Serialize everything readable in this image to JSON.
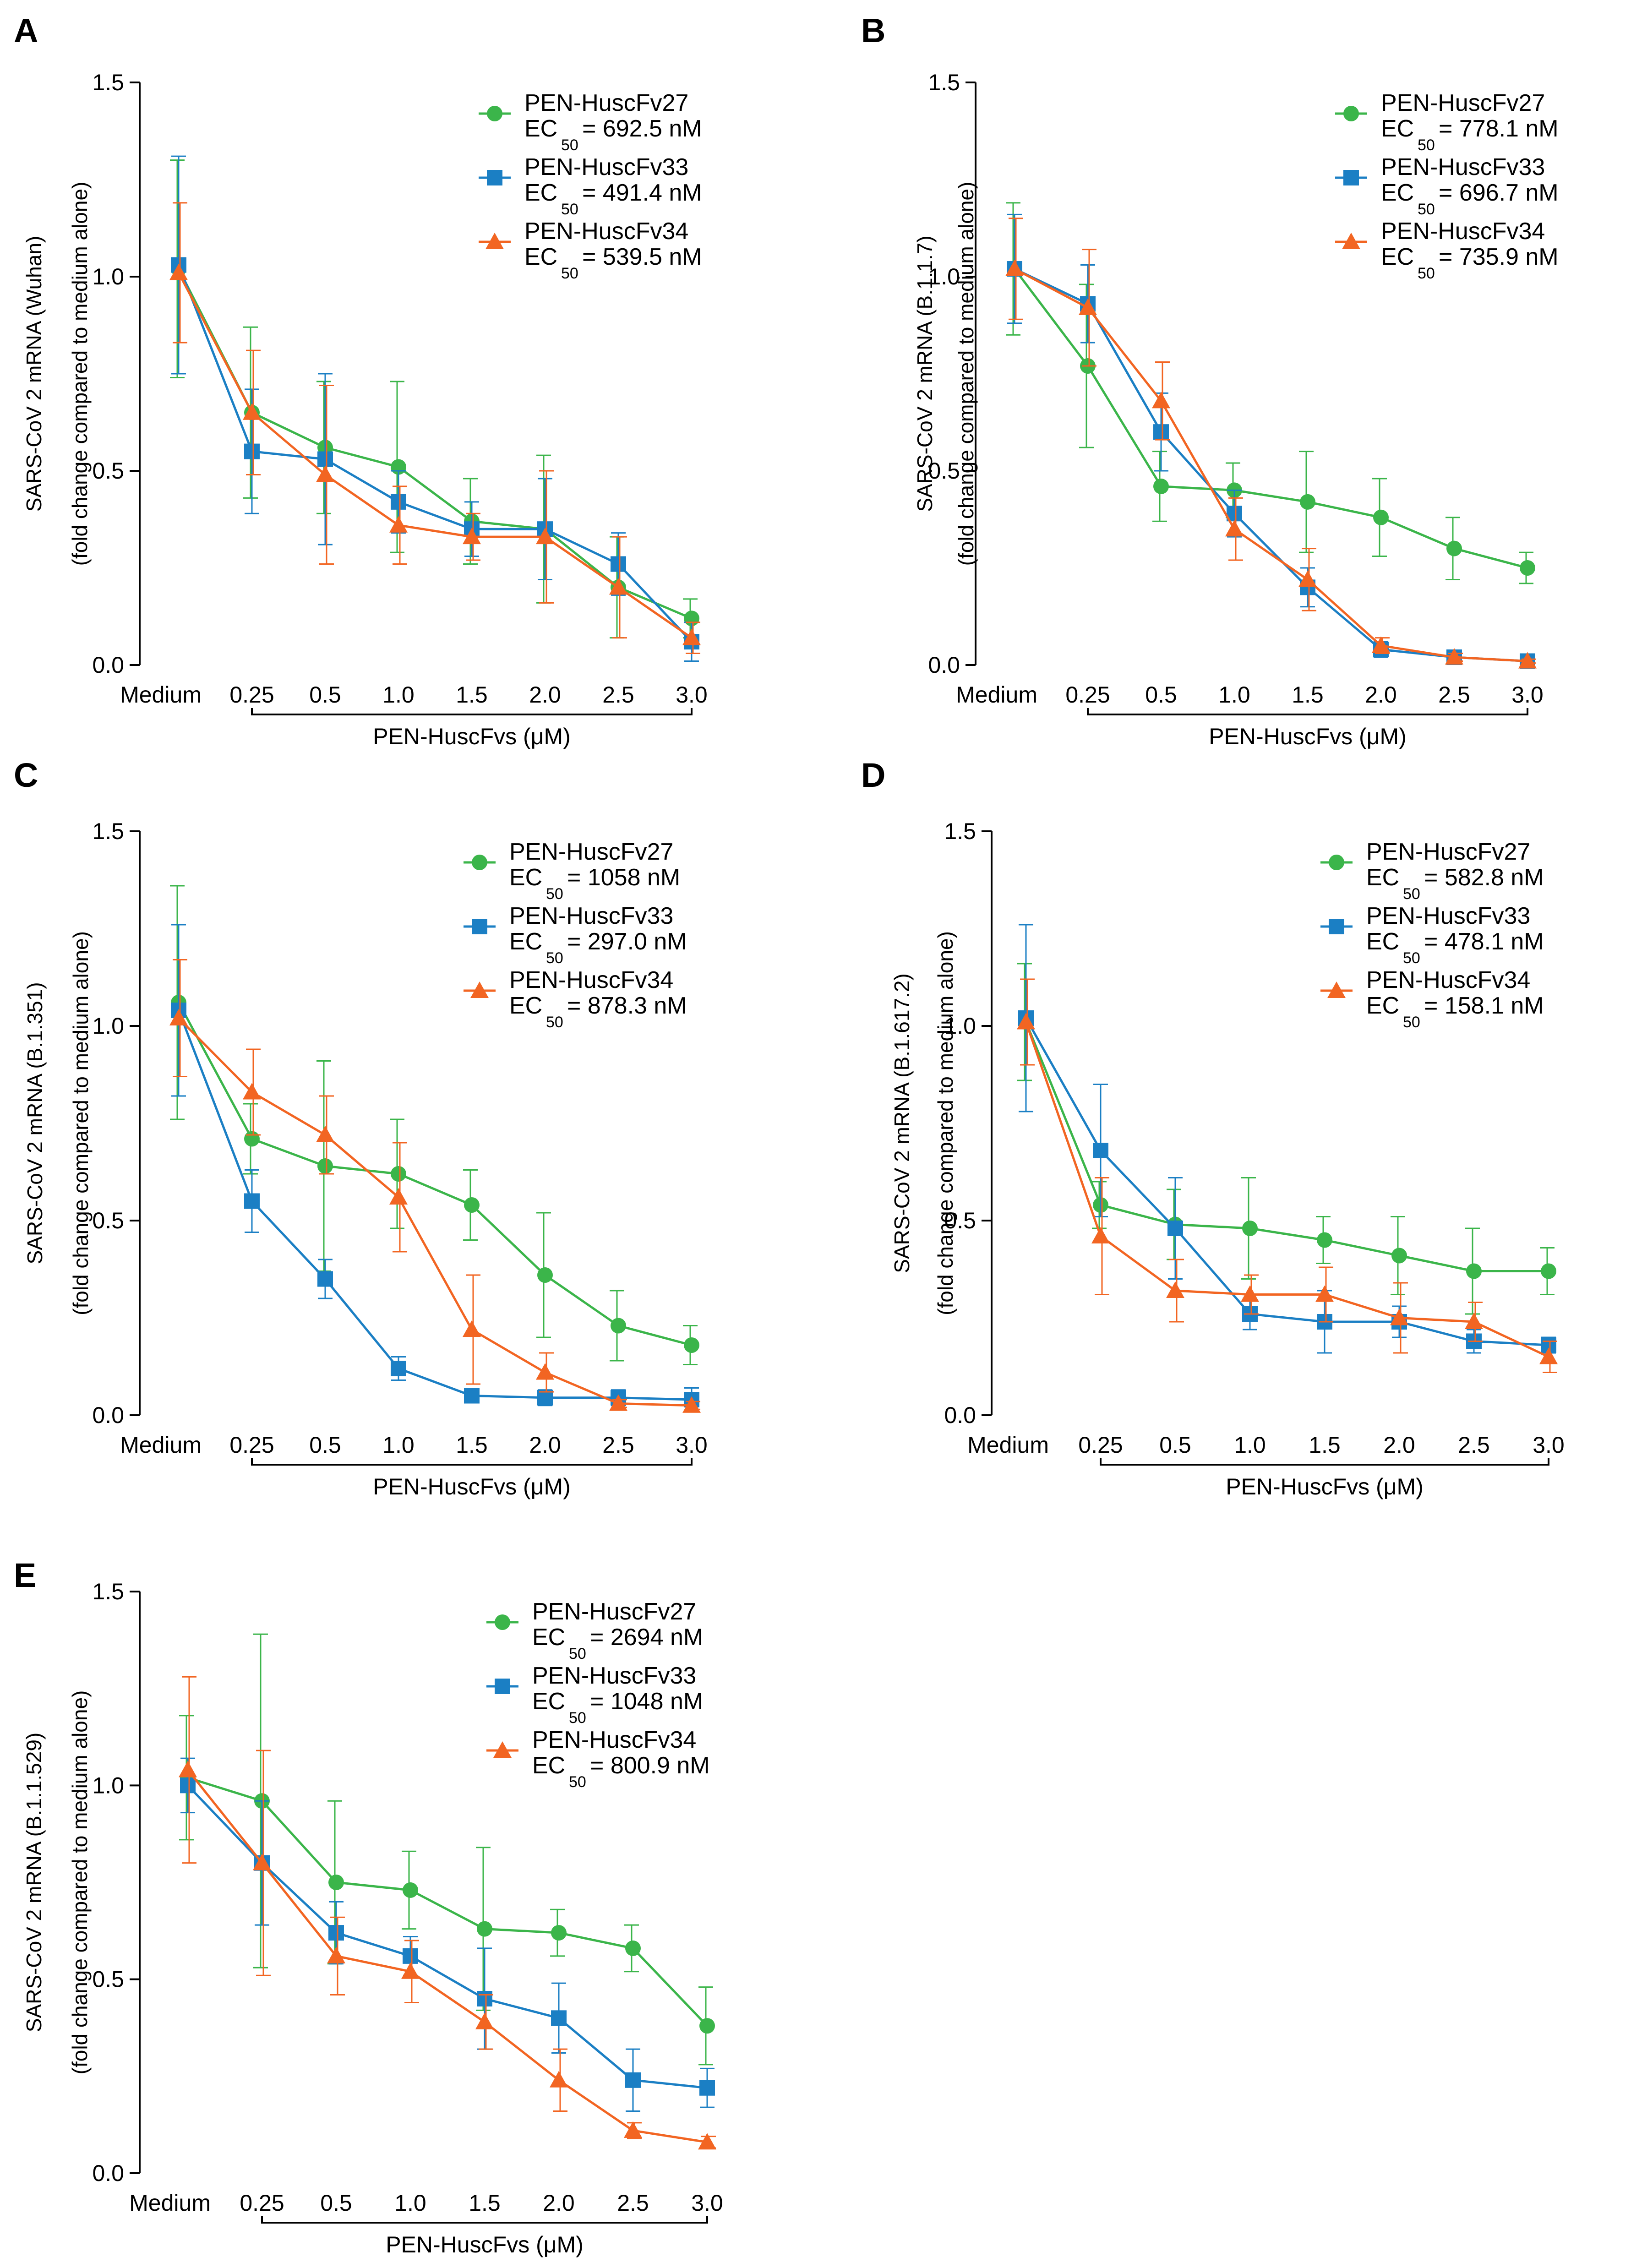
{
  "figure": {
    "x_axis_label": "PEN-HuscFvs (μM)",
    "categories": [
      "Medium",
      "0.25",
      "0.5",
      "1.0",
      "1.5",
      "2.0",
      "2.5",
      "3.0"
    ],
    "y_ticks": [
      "0.0",
      "0.5",
      "1.0",
      "1.5"
    ],
    "series_colors": {
      "PEN-HuscFv27": "#3bb54a",
      "PEN-HuscFv33": "#1b7fc4",
      "PEN-HuscFv34": "#f26522"
    },
    "ec_label": "EC",
    "ec_subscript": "50"
  },
  "chart_data": [
    {
      "panel": "A",
      "type": "line",
      "ylabel": "SARS-CoV 2 mRNA (Wuhan)",
      "ylabel2": "(fold change compared to medium alone)",
      "xlabel": "PEN-HuscFvs (μM)",
      "ylim": [
        0,
        1.5
      ],
      "categories": [
        "Medium",
        "0.25",
        "0.5",
        "1.0",
        "1.5",
        "2.0",
        "2.5",
        "3.0"
      ],
      "series": [
        {
          "name": "PEN-HuscFv27",
          "ec50": "= 692.5 nM",
          "marker": "circle",
          "color": "#3bb54a",
          "values": [
            1.02,
            0.65,
            0.56,
            0.51,
            0.37,
            0.35,
            0.2,
            0.12
          ],
          "errors": [
            0.28,
            0.22,
            0.17,
            0.22,
            0.11,
            0.19,
            0.13,
            0.05
          ]
        },
        {
          "name": "PEN-HuscFv33",
          "ec50": "= 491.4 nM",
          "marker": "square",
          "color": "#1b7fc4",
          "values": [
            1.03,
            0.55,
            0.53,
            0.42,
            0.35,
            0.35,
            0.26,
            0.06
          ],
          "errors": [
            0.28,
            0.16,
            0.22,
            0.08,
            0.07,
            0.13,
            0.08,
            0.05
          ]
        },
        {
          "name": "PEN-HuscFv34",
          "ec50": "= 539.5 nM",
          "marker": "triangle",
          "color": "#f26522",
          "values": [
            1.01,
            0.65,
            0.49,
            0.36,
            0.33,
            0.33,
            0.2,
            0.07
          ],
          "errors": [
            0.18,
            0.16,
            0.23,
            0.1,
            0.06,
            0.17,
            0.13,
            0.04
          ]
        }
      ]
    },
    {
      "panel": "B",
      "type": "line",
      "ylabel": "SARS-CoV 2 mRNA (B.1.1.7)",
      "ylabel2": "(fold change compared to medium alone)",
      "xlabel": "PEN-HuscFvs (μM)",
      "ylim": [
        0,
        1.5
      ],
      "categories": [
        "Medium",
        "0.25",
        "0.5",
        "1.0",
        "1.5",
        "2.0",
        "2.5",
        "3.0"
      ],
      "series": [
        {
          "name": "PEN-HuscFv27",
          "ec50": "= 778.1 nM",
          "marker": "circle",
          "color": "#3bb54a",
          "values": [
            1.02,
            0.77,
            0.46,
            0.45,
            0.42,
            0.38,
            0.3,
            0.25
          ],
          "errors": [
            0.17,
            0.21,
            0.09,
            0.07,
            0.13,
            0.1,
            0.08,
            0.04
          ]
        },
        {
          "name": "PEN-HuscFv33",
          "ec50": "= 696.7 nM",
          "marker": "square",
          "color": "#1b7fc4",
          "values": [
            1.02,
            0.93,
            0.6,
            0.39,
            0.2,
            0.04,
            0.02,
            0.01
          ],
          "errors": [
            0.14,
            0.1,
            0.1,
            0.06,
            0.05,
            0.02,
            0.01,
            0.005
          ]
        },
        {
          "name": "PEN-HuscFv34",
          "ec50": "= 735.9 nM",
          "marker": "triangle",
          "color": "#f26522",
          "values": [
            1.02,
            0.92,
            0.68,
            0.35,
            0.22,
            0.05,
            0.02,
            0.01
          ],
          "errors": [
            0.13,
            0.15,
            0.1,
            0.08,
            0.08,
            0.02,
            0.01,
            0.005
          ]
        }
      ]
    },
    {
      "panel": "C",
      "type": "line",
      "ylabel": "SARS-CoV 2 mRNA (B.1.351)",
      "ylabel2": "(fold change compared to medium alone)",
      "xlabel": "PEN-HuscFvs (μM)",
      "ylim": [
        0,
        1.5
      ],
      "categories": [
        "Medium",
        "0.25",
        "0.5",
        "1.0",
        "1.5",
        "2.0",
        "2.5",
        "3.0"
      ],
      "series": [
        {
          "name": "PEN-HuscFv27",
          "ec50": "= 1058 nM",
          "marker": "circle",
          "color": "#3bb54a",
          "values": [
            1.06,
            0.71,
            0.64,
            0.62,
            0.54,
            0.36,
            0.23,
            0.18
          ],
          "errors": [
            0.3,
            0.09,
            0.27,
            0.14,
            0.09,
            0.16,
            0.09,
            0.05
          ]
        },
        {
          "name": "PEN-HuscFv33",
          "ec50": "= 297.0 nM",
          "marker": "square",
          "color": "#1b7fc4",
          "values": [
            1.04,
            0.55,
            0.35,
            0.12,
            0.05,
            0.045,
            0.045,
            0.04
          ],
          "errors": [
            0.22,
            0.08,
            0.05,
            0.03,
            0.015,
            0.02,
            0.02,
            0.03
          ]
        },
        {
          "name": "PEN-HuscFv34",
          "ec50": "= 878.3 nM",
          "marker": "triangle",
          "color": "#f26522",
          "values": [
            1.02,
            0.83,
            0.72,
            0.56,
            0.22,
            0.11,
            0.03,
            0.025
          ],
          "errors": [
            0.15,
            0.11,
            0.1,
            0.14,
            0.14,
            0.05,
            0.01,
            0.01
          ]
        }
      ]
    },
    {
      "panel": "D",
      "type": "line",
      "ylabel": "SARS-CoV 2 mRNA (B.1.617.2)",
      "ylabel2": "(fold change compared to medium alone)",
      "xlabel": "PEN-HuscFvs (μM)",
      "ylim": [
        0,
        1.5
      ],
      "categories": [
        "Medium",
        "0.25",
        "0.5",
        "1.0",
        "1.5",
        "2.0",
        "2.5",
        "3.0"
      ],
      "series": [
        {
          "name": "PEN-HuscFv27",
          "ec50": "= 582.8 nM",
          "marker": "circle",
          "color": "#3bb54a",
          "values": [
            1.01,
            0.54,
            0.49,
            0.48,
            0.45,
            0.41,
            0.37,
            0.37
          ],
          "errors": [
            0.15,
            0.06,
            0.09,
            0.13,
            0.06,
            0.1,
            0.11,
            0.06
          ]
        },
        {
          "name": "PEN-HuscFv33",
          "ec50": "= 478.1 nM",
          "marker": "square",
          "color": "#1b7fc4",
          "values": [
            1.02,
            0.68,
            0.48,
            0.26,
            0.24,
            0.24,
            0.19,
            0.18
          ],
          "errors": [
            0.24,
            0.17,
            0.13,
            0.04,
            0.08,
            0.04,
            0.03,
            0.02
          ]
        },
        {
          "name": "PEN-HuscFv34",
          "ec50": "= 158.1 nM",
          "marker": "triangle",
          "color": "#f26522",
          "values": [
            1.01,
            0.46,
            0.32,
            0.31,
            0.31,
            0.25,
            0.24,
            0.15
          ],
          "errors": [
            0.11,
            0.15,
            0.08,
            0.05,
            0.07,
            0.09,
            0.05,
            0.04
          ]
        }
      ]
    },
    {
      "panel": "E",
      "type": "line",
      "ylabel": "SARS-CoV 2 mRNA (B.1.1.529)",
      "ylabel2": "(fold change compared to medium alone)",
      "xlabel": "PEN-HuscFvs (μM)",
      "ylim": [
        0,
        1.5
      ],
      "categories": [
        "Medium",
        "0.25",
        "0.5",
        "1.0",
        "1.5",
        "2.0",
        "2.5",
        "3.0"
      ],
      "series": [
        {
          "name": "PEN-HuscFv27",
          "ec50": "= 2694 nM",
          "marker": "circle",
          "color": "#3bb54a",
          "values": [
            1.02,
            0.96,
            0.75,
            0.73,
            0.63,
            0.62,
            0.58,
            0.38
          ],
          "errors": [
            0.16,
            0.43,
            0.21,
            0.1,
            0.21,
            0.06,
            0.06,
            0.1
          ]
        },
        {
          "name": "PEN-HuscFv33",
          "ec50": "= 1048 nM",
          "marker": "square",
          "color": "#1b7fc4",
          "values": [
            1.0,
            0.8,
            0.62,
            0.56,
            0.45,
            0.4,
            0.24,
            0.22
          ],
          "errors": [
            0.07,
            0.16,
            0.08,
            0.05,
            0.13,
            0.09,
            0.08,
            0.05
          ]
        },
        {
          "name": "PEN-HuscFv34",
          "ec50": "= 800.9 nM",
          "marker": "triangle",
          "color": "#f26522",
          "values": [
            1.04,
            0.8,
            0.56,
            0.52,
            0.39,
            0.24,
            0.11,
            0.08
          ],
          "errors": [
            0.24,
            0.29,
            0.1,
            0.08,
            0.07,
            0.08,
            0.02,
            0.015
          ]
        }
      ]
    }
  ]
}
